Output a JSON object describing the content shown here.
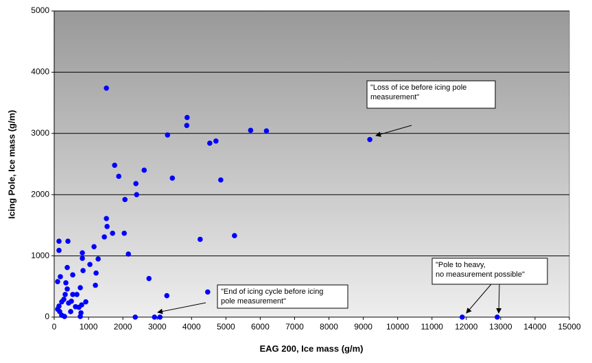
{
  "chart_data": {
    "type": "scatter",
    "x_label": "EAG 200, Ice mass (g/m)",
    "y_label": "Icing Pole, Ice mass (g/m)",
    "xlim": [
      0,
      15000
    ],
    "ylim": [
      0,
      5000
    ],
    "xticks": [
      0,
      1000,
      2000,
      3000,
      4000,
      5000,
      6000,
      7000,
      8000,
      9000,
      10000,
      11000,
      12000,
      13000,
      14000,
      15000
    ],
    "yticks": [
      0,
      1000,
      2000,
      3000,
      4000,
      5000
    ],
    "grid": true,
    "series": [
      {
        "color": "#0000ff",
        "x": [
          1520,
          3870,
          3860,
          3300,
          4530,
          4710,
          9190,
          5720,
          6180,
          1760,
          1880,
          2620,
          2380,
          2400,
          2060,
          3440,
          4850,
          1520,
          1540,
          1460,
          1700,
          2040,
          4250,
          5250,
          2160,
          1160,
          1280,
          1040,
          820,
          820,
          840,
          1220,
          1200,
          2760,
          3280,
          4470,
          140,
          140,
          400,
          100,
          180,
          380,
          540,
          340,
          760,
          660,
          540,
          380,
          320,
          620,
          720,
          920,
          800,
          500,
          420,
          280,
          220,
          140,
          100,
          160,
          220,
          300,
          480,
          760,
          780,
          2360,
          2920,
          3080,
          11880,
          12900
        ],
        "values": [
          3740,
          3260,
          3130,
          2975,
          2840,
          2875,
          2900,
          3050,
          3040,
          2480,
          2300,
          2400,
          2180,
          2000,
          1920,
          2270,
          2240,
          1610,
          1480,
          1310,
          1370,
          1370,
          1270,
          1330,
          1030,
          1150,
          950,
          860,
          1050,
          960,
          760,
          720,
          520,
          630,
          350,
          410,
          1240,
          1090,
          1240,
          580,
          660,
          810,
          690,
          560,
          480,
          370,
          370,
          460,
          370,
          170,
          160,
          250,
          200,
          260,
          230,
          290,
          250,
          180,
          130,
          90,
          30,
          10,
          90,
          10,
          70,
          0,
          0,
          0,
          0,
          0
        ]
      }
    ],
    "annotations": [
      {
        "lines": [
          "\"Loss of ice before icing pole",
          "measurement\""
        ]
      },
      {
        "lines": [
          "\"End of icing cycle before icing",
          "pole measurement\""
        ]
      },
      {
        "lines": [
          "\"Pole to heavy,",
          "no measurement possible\""
        ]
      }
    ]
  }
}
